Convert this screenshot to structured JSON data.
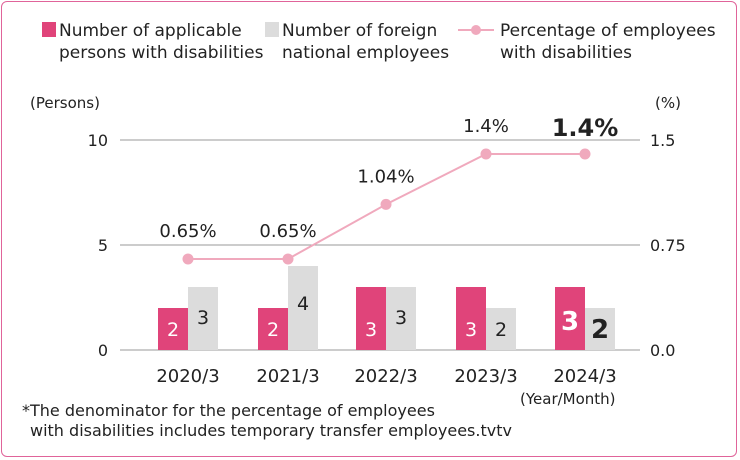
{
  "chart_data": {
    "type": "bar",
    "categories": [
      "2020/3",
      "2021/3",
      "2022/3",
      "2023/3",
      "2024/3"
    ],
    "series": [
      {
        "name": "Number of applicable persons with disabilities",
        "kind": "bar",
        "axis": "left",
        "color": "#e0447a",
        "values": [
          2,
          2,
          3,
          3,
          3
        ]
      },
      {
        "name": "Number of foreign national employees",
        "kind": "bar",
        "axis": "left",
        "color": "#dcdcdc",
        "values": [
          3,
          4,
          3,
          2,
          2
        ]
      },
      {
        "name": "Percentage of employees with disabilities",
        "kind": "line",
        "axis": "right",
        "color": "#f0a9bd",
        "values": [
          0.65,
          0.65,
          1.04,
          1.4,
          1.4
        ]
      }
    ],
    "legend": [
      {
        "line1": "Number of applicable",
        "line2": "persons with disabilities"
      },
      {
        "line1": "Number of foreign",
        "line2": "national employees"
      },
      {
        "line1": "Percentage of employees",
        "line2": "with disabilities"
      }
    ],
    "line_labels": [
      "0.65%",
      "0.65%",
      "1.04%",
      "1.4%",
      "1.4%"
    ],
    "left_axis": {
      "unit": "(Persons)",
      "ticks": [
        0,
        5,
        10
      ],
      "ylim": [
        0,
        10
      ]
    },
    "right_axis": {
      "unit": "(%)",
      "ticks": [
        "0.0",
        "0.75",
        "1.5"
      ],
      "ylim": [
        0,
        1.5
      ]
    },
    "x_unit": "(Year/Month)",
    "highlight_index": 4
  },
  "note": {
    "line1": "*The denominator for the percentage of employees",
    "line2": "with disabilities includes temporary transfer employees.tvtv"
  }
}
